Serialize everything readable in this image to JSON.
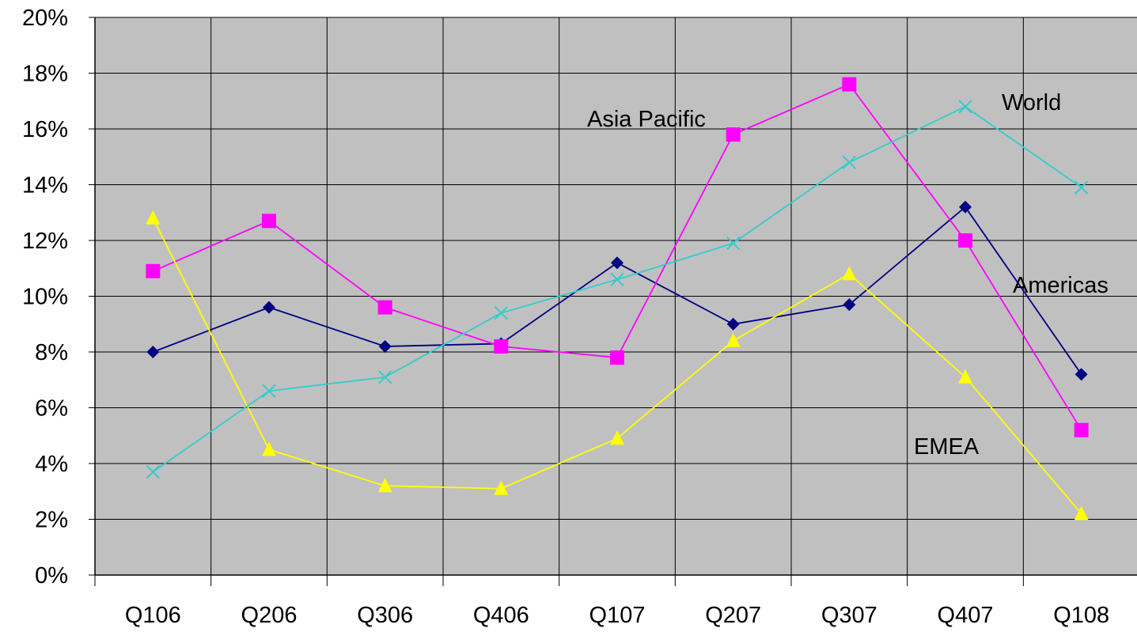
{
  "chart_data": {
    "type": "line",
    "title": "",
    "xlabel": "",
    "ylabel": "",
    "categories": [
      "Q106",
      "Q206",
      "Q306",
      "Q406",
      "Q107",
      "Q207",
      "Q307",
      "Q407",
      "Q108"
    ],
    "ylim": [
      0,
      0.2
    ],
    "yticks": [
      0,
      0.02,
      0.04,
      0.06,
      0.08,
      0.1,
      0.12,
      0.14,
      0.16,
      0.18,
      0.2
    ],
    "ytick_labels": [
      "0%",
      "2%",
      "4%",
      "6%",
      "8%",
      "10%",
      "12%",
      "14%",
      "16%",
      "18%",
      "20%"
    ],
    "grid": true,
    "plot_background": "#c0c0c0",
    "series": [
      {
        "name": "Americas",
        "marker": "diamond",
        "color": "#000080",
        "values": [
          0.08,
          0.096,
          0.082,
          0.083,
          0.112,
          0.09,
          0.097,
          0.132,
          0.072
        ]
      },
      {
        "name": "Asia Pacific",
        "marker": "square",
        "color": "#ff00ff",
        "values": [
          0.109,
          0.127,
          0.096,
          0.082,
          0.078,
          0.158,
          0.176,
          0.12,
          0.052
        ]
      },
      {
        "name": "EMEA",
        "marker": "triangle",
        "color": "#ffff00",
        "values": [
          0.128,
          0.045,
          0.032,
          0.031,
          0.049,
          0.084,
          0.108,
          0.071,
          0.022
        ]
      },
      {
        "name": "World",
        "marker": "x",
        "color": "#33cccc",
        "values": [
          0.037,
          0.066,
          0.071,
          0.094,
          0.106,
          0.119,
          0.148,
          0.168,
          0.139
        ]
      }
    ],
    "annotations": [
      {
        "text": "Asia Pacific",
        "series": "Asia Pacific"
      },
      {
        "text": "World",
        "series": "World"
      },
      {
        "text": "Americas",
        "series": "Americas"
      },
      {
        "text": "EMEA",
        "series": "EMEA"
      }
    ]
  }
}
